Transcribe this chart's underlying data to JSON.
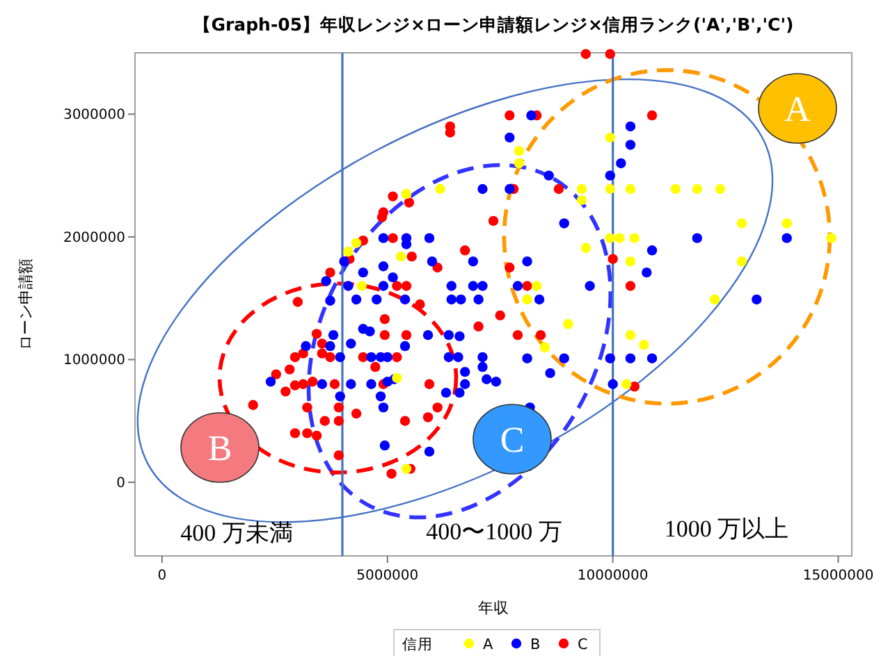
{
  "chart_data": {
    "type": "scatter",
    "title": "【Graph-05】年収レンジ×ローン申請額レンジ×信用ランク('A','B','C')",
    "xlabel": "年収",
    "ylabel": "ローン申請額",
    "legend_title": "信用",
    "legend": "bottom",
    "marker": "circle",
    "grid": false,
    "xlim": [
      -600000,
      15300000
    ],
    "ylim": [
      -600000,
      3500000
    ],
    "xticks": [
      0,
      5000000,
      10000000,
      15000000
    ],
    "yticks": [
      0,
      1000000,
      2000000,
      3000000
    ],
    "ref_lines": [
      {
        "axis": "x",
        "value": 4000000,
        "color": "#4472c4"
      },
      {
        "axis": "x",
        "value": 10000000,
        "color": "#4472c4"
      }
    ],
    "annotations": [
      "400 万未満",
      "400〜1000 万",
      "1000 万以上",
      "A",
      "B",
      "C"
    ],
    "series": [
      {
        "name": "A",
        "color": "#ffff00",
        "x": [
          6170000,
          5420000,
          4130000,
          4310000,
          5300000,
          4430000,
          7920000,
          7920000,
          9940000,
          9310000,
          9310000,
          9940000,
          10390000,
          11390000,
          11870000,
          12380000,
          9940000,
          10150000,
          10480000,
          9400000,
          10390000,
          12860000,
          13860000,
          14850000,
          12860000,
          8310000,
          8100000,
          12260000,
          9010000,
          8490000,
          10390000,
          10690000,
          10300000,
          5210000,
          5420000
        ],
        "values": [
          2390000,
          2350000,
          1880000,
          1950000,
          1840000,
          1600000,
          2700000,
          2600000,
          2810000,
          2390000,
          2300000,
          2390000,
          2390000,
          2390000,
          2390000,
          2390000,
          1990000,
          1990000,
          1990000,
          1910000,
          1800000,
          2110000,
          2110000,
          1990000,
          1800000,
          1600000,
          1490000,
          1490000,
          1290000,
          1100000,
          1200000,
          1120000,
          800000,
          850000,
          110000
        ]
      },
      {
        "name": "B",
        "color": "#0000ff",
        "x": [
          7110000,
          4910000,
          5420000,
          5420000,
          5930000,
          5990000,
          4910000,
          6900000,
          5120000,
          4460000,
          3640000,
          4040000,
          6420000,
          6900000,
          7110000,
          4910000,
          4130000,
          3730000,
          4310000,
          4760000,
          6420000,
          6630000,
          7020000,
          5390000,
          8190000,
          10390000,
          10390000,
          7710000,
          10180000,
          9940000,
          8580000,
          7710000,
          8920000,
          11870000,
          13860000,
          10870000,
          8100000,
          10750000,
          9490000,
          7890000,
          8370000,
          13190000,
          8100000,
          8610000,
          8920000,
          7410000,
          9940000,
          10390000,
          10870000,
          10000000,
          8160000,
          4460000,
          4610000,
          5900000,
          6360000,
          6600000,
          3800000,
          4190000,
          5390000,
          3190000,
          3730000,
          4640000,
          4850000,
          5000000,
          3950000,
          6360000,
          6570000,
          7110000,
          7110000,
          6720000,
          2410000,
          3550000,
          4190000,
          4640000,
          5000000,
          5150000,
          6720000,
          7200000,
          3950000,
          4850000,
          6300000,
          6600000,
          4910000,
          4940000,
          5930000
        ],
        "values": [
          2390000,
          1990000,
          1990000,
          1940000,
          1990000,
          1800000,
          1760000,
          1800000,
          1670000,
          1710000,
          1640000,
          1800000,
          1600000,
          1600000,
          1600000,
          1600000,
          1600000,
          1480000,
          1490000,
          1490000,
          1490000,
          1490000,
          1490000,
          1490000,
          2990000,
          2900000,
          2750000,
          2810000,
          2600000,
          2500000,
          2500000,
          2390000,
          2110000,
          1990000,
          1990000,
          1890000,
          1800000,
          1710000,
          1600000,
          1600000,
          1490000,
          1490000,
          1010000,
          890000,
          1010000,
          820000,
          1010000,
          1010000,
          1010000,
          800000,
          610000,
          1250000,
          1230000,
          1200000,
          1200000,
          1190000,
          1200000,
          1130000,
          1110000,
          1110000,
          1110000,
          1020000,
          1020000,
          1020000,
          1020000,
          1020000,
          1020000,
          1020000,
          940000,
          900000,
          820000,
          800000,
          800000,
          800000,
          820000,
          840000,
          800000,
          840000,
          700000,
          700000,
          730000,
          730000,
          610000,
          300000,
          250000
        ]
      },
      {
        "name": "C",
        "color": "#ff0000",
        "x": [
          6390000,
          6390000,
          5120000,
          5480000,
          4910000,
          4880000,
          7350000,
          5120000,
          6720000,
          5540000,
          6110000,
          4460000,
          4160000,
          3730000,
          5210000,
          5420000,
          3010000,
          5720000,
          9400000,
          9940000,
          7710000,
          8310000,
          10870000,
          8800000,
          7800000,
          10000000,
          7710000,
          10390000,
          8100000,
          7500000,
          7890000,
          8400000,
          10480000,
          4940000,
          3430000,
          4940000,
          5420000,
          7020000,
          3550000,
          3130000,
          2950000,
          3550000,
          3730000,
          4460000,
          5210000,
          4730000,
          2530000,
          2830000,
          2740000,
          2950000,
          3130000,
          3340000,
          3830000,
          4910000,
          5930000,
          3220000,
          3920000,
          4310000,
          3610000,
          3920000,
          5390000,
          5900000,
          6110000,
          2020000,
          2950000,
          3220000,
          3430000,
          3920000,
          5090000,
          5510000
        ],
        "values": [
          2900000,
          2850000,
          2330000,
          2280000,
          2200000,
          2160000,
          2130000,
          1990000,
          1890000,
          1840000,
          1750000,
          1970000,
          1820000,
          1710000,
          1600000,
          1600000,
          1470000,
          1450000,
          3490000,
          3490000,
          2990000,
          2990000,
          2990000,
          2390000,
          2390000,
          1820000,
          1750000,
          1600000,
          1600000,
          1360000,
          1200000,
          1200000,
          780000,
          1330000,
          1210000,
          1200000,
          1200000,
          1270000,
          1130000,
          1050000,
          1020000,
          1050000,
          1020000,
          1020000,
          1020000,
          940000,
          880000,
          920000,
          740000,
          790000,
          800000,
          820000,
          800000,
          800000,
          800000,
          610000,
          610000,
          560000,
          500000,
          500000,
          500000,
          530000,
          610000,
          630000,
          400000,
          400000,
          380000,
          220000,
          70000,
          110000
        ]
      }
    ]
  }
}
